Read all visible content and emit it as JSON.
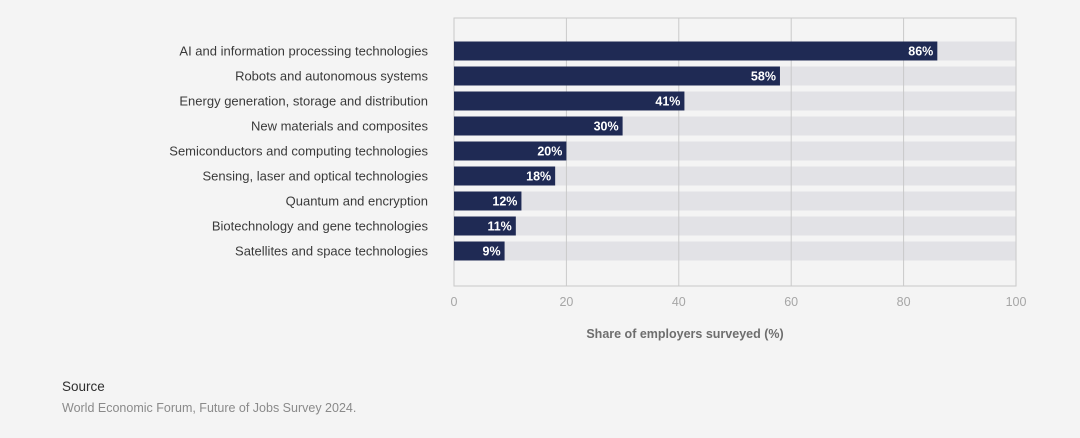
{
  "chart_data": {
    "type": "bar",
    "orientation": "horizontal",
    "categories": [
      "AI and information processing technologies",
      "Robots and autonomous systems",
      "Energy generation, storage and distribution",
      "New materials and composites",
      "Semiconductors and computing technologies",
      "Sensing, laser and optical technologies",
      "Quantum and encryption",
      "Biotechnology and gene technologies",
      "Satellites and space technologies"
    ],
    "values": [
      86,
      58,
      41,
      30,
      20,
      18,
      12,
      11,
      9
    ],
    "value_labels": [
      "86%",
      "58%",
      "41%",
      "30%",
      "20%",
      "18%",
      "12%",
      "11%",
      "9%"
    ],
    "xlabel": "Share of employers surveyed (%)",
    "ylabel": "",
    "xlim": [
      0,
      100
    ],
    "xticks": [
      "0",
      "20",
      "40",
      "60",
      "80",
      "100"
    ],
    "grid": true,
    "colors": {
      "bar": "#1f2a54",
      "track": "#e2e2e6",
      "grid": "#c9c9c9",
      "frame": "#c9c9c9",
      "background": "#f4f4f4"
    }
  },
  "source": {
    "title": "Source",
    "text": "World Economic Forum, Future of Jobs Survey 2024."
  }
}
